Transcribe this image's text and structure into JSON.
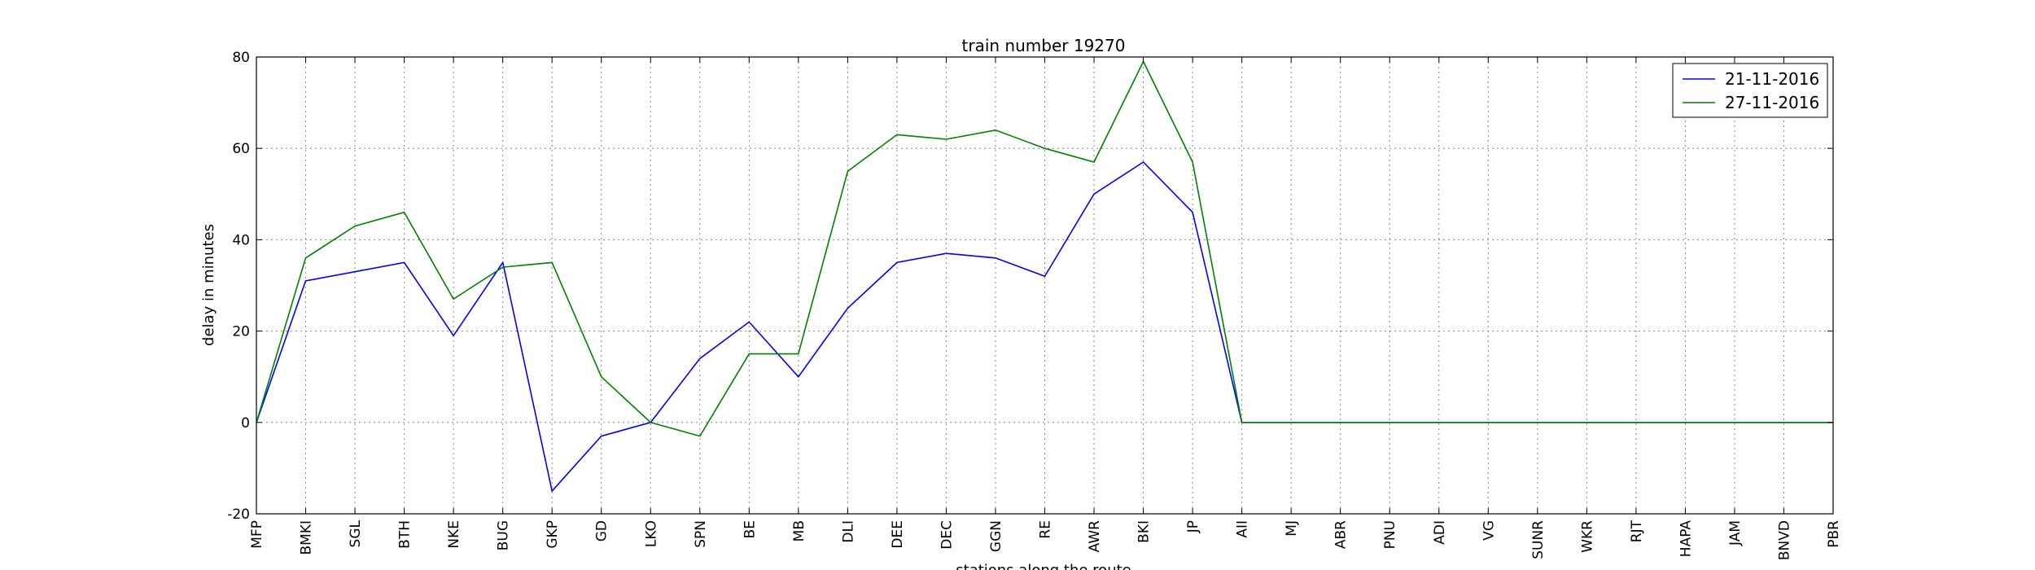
{
  "chart_data": {
    "type": "line",
    "title": "train number 19270",
    "xlabel": "stations along the route",
    "ylabel": "delay in minutes",
    "ylim": [
      -20,
      80
    ],
    "yticks": [
      -20,
      0,
      20,
      40,
      60,
      80
    ],
    "grid": true,
    "legend_position": "top-right",
    "categories": [
      "MFP",
      "BMKI",
      "SGL",
      "BTH",
      "NKE",
      "BUG",
      "GKP",
      "GD",
      "LKO",
      "SPN",
      "BE",
      "MB",
      "DLI",
      "DEE",
      "DEC",
      "GGN",
      "RE",
      "AWR",
      "BKI",
      "JP",
      "AII",
      "MJ",
      "ABR",
      "PNU",
      "ADI",
      "VG",
      "SUNR",
      "WKR",
      "RJT",
      "HAPA",
      "JAM",
      "BNVD",
      "PBR"
    ],
    "series": [
      {
        "name": "21-11-2016",
        "color": "#0000ff",
        "values": [
          0,
          31,
          33,
          35,
          19,
          35,
          -15,
          -3,
          0,
          14,
          22,
          10,
          25,
          35,
          37,
          36,
          32,
          50,
          57,
          46,
          0,
          0,
          0,
          0,
          0,
          0,
          0,
          0,
          0,
          0,
          0,
          0,
          0
        ]
      },
      {
        "name": "27-11-2016",
        "color": "#008000",
        "values": [
          0,
          36,
          43,
          46,
          27,
          34,
          35,
          10,
          0,
          -3,
          15,
          15,
          55,
          63,
          62,
          64,
          60,
          57,
          79,
          57,
          0,
          0,
          0,
          0,
          0,
          0,
          0,
          0,
          0,
          0,
          0,
          0,
          0
        ]
      }
    ]
  }
}
